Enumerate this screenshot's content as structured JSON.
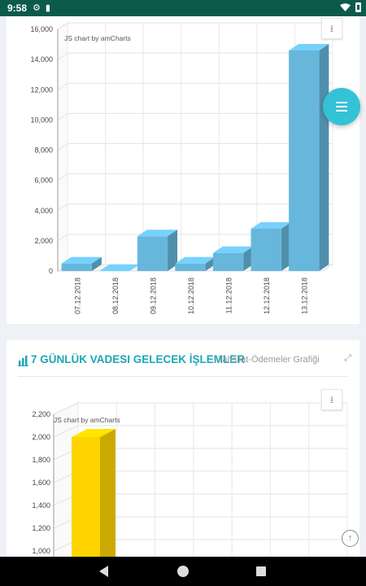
{
  "status_bar": {
    "time": "9:58",
    "left_icons": [
      "gear-icon",
      "sd-card-icon"
    ],
    "right_icons": [
      "wifi-icon",
      "battery-icon"
    ]
  },
  "chart_top": {
    "chart_data": {
      "type": "bar",
      "categories": [
        "07.12.2018",
        "08.12.2018",
        "09.12.2018",
        "10.12.2018",
        "11.12.2018",
        "12.12.2018",
        "13.12.2018"
      ],
      "values": [
        500,
        0,
        2300,
        500,
        1200,
        2800,
        14600
      ],
      "ylim": [
        0,
        16000
      ],
      "yticks": [
        "0",
        "2,000",
        "4,000",
        "6,000",
        "8,000",
        "10,000",
        "12,000",
        "14,000",
        "16,000"
      ],
      "color": "#67b7dc",
      "grid": true,
      "style": "3d"
    },
    "credit": "JS chart by amCharts",
    "download_icon": "download-icon"
  },
  "fab_icon": "menu-icon",
  "section2": {
    "icon": "bar-chart-icon",
    "title": "7 GÜNLÜK VADESI GELECEK İŞLEMLER",
    "subtitle": "Tahsilat-Ödemeler Grafiği",
    "expand_icon": "expand-icon",
    "credit": "JS chart by amCharts",
    "download_icon": "download-icon",
    "chart_data": {
      "type": "bar",
      "categories": [
        ""
      ],
      "values": [
        2000
      ],
      "ylim_visible": [
        1000,
        2200
      ],
      "yticks": [
        "1,000",
        "1,200",
        "1,400",
        "1,600",
        "1,800",
        "2,000",
        "2,200"
      ],
      "color": "#fdd400",
      "grid": true,
      "style": "3d"
    }
  },
  "scroll_top_icon": "arrow-up-icon",
  "nav_bar": {
    "icons": [
      "back-icon",
      "home-icon",
      "recents-icon"
    ]
  }
}
